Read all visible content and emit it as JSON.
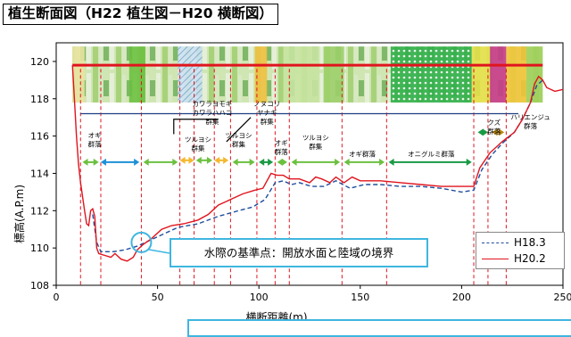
{
  "title": "植生断面図（H22 植生図－H20 横断図）",
  "callout_text": "水際の基準点：開放水面と陸域の境界",
  "colors": {
    "h183": "#1f4e9c",
    "h202": "#e0141e",
    "guide_line": "#1f3f80",
    "vertical_dash": "#e0141e",
    "arrow_green": "#6cc040",
    "arrow_darkgreen": "#1a9a44",
    "arrow_blue": "#1e90d6",
    "arrow_yellow": "#f4b82e",
    "callout_border": "#3fb6e0",
    "strip_top_line": "#e0141e"
  },
  "chart_data": {
    "type": "line",
    "title": "植生断面図（H22 植生図－H20 横断図）",
    "xlabel": "横断距離(m)",
    "ylabel": "標高(A.P.m)",
    "xlim": [
      0,
      250
    ],
    "ylim": [
      108,
      121
    ],
    "xticks": [
      0,
      50,
      100,
      150,
      200,
      250
    ],
    "yticks": [
      108,
      110,
      112,
      114,
      116,
      118,
      120
    ],
    "grid": false,
    "legend_position": "bottom-right",
    "series": [
      {
        "name": "H18.3",
        "style": "dashed",
        "color": "#1f4e9c",
        "points": [
          [
            18,
            111.8
          ],
          [
            20,
            110.3
          ],
          [
            22,
            109.8
          ],
          [
            28,
            109.8
          ],
          [
            34,
            109.9
          ],
          [
            40,
            110.1
          ],
          [
            46,
            110.4
          ],
          [
            52,
            110.7
          ],
          [
            60,
            111.1
          ],
          [
            70,
            111.3
          ],
          [
            80,
            111.7
          ],
          [
            90,
            112.0
          ],
          [
            97,
            112.2
          ],
          [
            103,
            112.6
          ],
          [
            108,
            113.5
          ],
          [
            112,
            113.6
          ],
          [
            116,
            113.4
          ],
          [
            120,
            113.5
          ],
          [
            126,
            113.3
          ],
          [
            132,
            113.3
          ],
          [
            138,
            113.6
          ],
          [
            145,
            113.2
          ],
          [
            152,
            113.4
          ],
          [
            160,
            113.4
          ],
          [
            170,
            113.3
          ],
          [
            180,
            113.3
          ],
          [
            190,
            113.2
          ],
          [
            200,
            113.0
          ],
          [
            206,
            113.1
          ],
          [
            210,
            114.2
          ],
          [
            215,
            115.0
          ],
          [
            220,
            115.6
          ],
          [
            226,
            116.2
          ],
          [
            230,
            116.9
          ],
          [
            234,
            117.8
          ],
          [
            237,
            118.7
          ],
          [
            240,
            119.0
          ]
        ]
      },
      {
        "name": "H20.2",
        "style": "solid",
        "color": "#e0141e",
        "points": [
          [
            8,
            119.8
          ],
          [
            9,
            118.0
          ],
          [
            10,
            116.0
          ],
          [
            11,
            114.5
          ],
          [
            12,
            113.5
          ],
          [
            14,
            112.0
          ],
          [
            15,
            111.3
          ],
          [
            16,
            111.2
          ],
          [
            17,
            112.0
          ],
          [
            18,
            112.1
          ],
          [
            19,
            111.7
          ],
          [
            20,
            110.0
          ],
          [
            21,
            109.7
          ],
          [
            24,
            109.6
          ],
          [
            27,
            109.5
          ],
          [
            29,
            109.7
          ],
          [
            32,
            109.4
          ],
          [
            35,
            109.3
          ],
          [
            38,
            109.5
          ],
          [
            40,
            109.9
          ],
          [
            43,
            110.2
          ],
          [
            47,
            110.5
          ],
          [
            52,
            111.0
          ],
          [
            57,
            111.2
          ],
          [
            63,
            111.3
          ],
          [
            70,
            111.5
          ],
          [
            75,
            111.8
          ],
          [
            80,
            112.3
          ],
          [
            86,
            112.6
          ],
          [
            92,
            112.9
          ],
          [
            98,
            113.1
          ],
          [
            102,
            113.2
          ],
          [
            106,
            114.0
          ],
          [
            109,
            113.9
          ],
          [
            112,
            113.9
          ],
          [
            115,
            113.7
          ],
          [
            120,
            113.7
          ],
          [
            125,
            113.5
          ],
          [
            128,
            113.8
          ],
          [
            131,
            113.7
          ],
          [
            135,
            113.5
          ],
          [
            138,
            113.8
          ],
          [
            142,
            113.5
          ],
          [
            146,
            113.8
          ],
          [
            150,
            113.6
          ],
          [
            160,
            113.6
          ],
          [
            170,
            113.5
          ],
          [
            180,
            113.4
          ],
          [
            190,
            113.3
          ],
          [
            200,
            113.3
          ],
          [
            206,
            113.3
          ],
          [
            209,
            114.3
          ],
          [
            214,
            115.1
          ],
          [
            220,
            115.7
          ],
          [
            226,
            116.2
          ],
          [
            230,
            116.9
          ],
          [
            234,
            117.8
          ],
          [
            236,
            118.8
          ],
          [
            238,
            119.2
          ],
          [
            240,
            119.0
          ],
          [
            242,
            118.6
          ],
          [
            246,
            118.4
          ],
          [
            250,
            118.5
          ]
        ]
      }
    ],
    "vertical_dashes_x": [
      12,
      22,
      42,
      61,
      68,
      78,
      86,
      99,
      108,
      115,
      141,
      163,
      206,
      213,
      222
    ],
    "vegetation_labels": [
      {
        "lines": [
          "オギ",
          "群落"
        ],
        "x": 19,
        "y": 115.9
      },
      {
        "lines": [
          "カワラヨモギ",
          "カワラハハコ",
          "群集"
        ],
        "x": 77,
        "y": 117.6
      },
      {
        "lines": [
          "ツルヨシ",
          "群集"
        ],
        "x": 70,
        "y": 115.7
      },
      {
        "lines": [
          "ツルヨシ",
          "群集"
        ],
        "x": 90,
        "y": 115.9
      },
      {
        "lines": [
          "ノヌコリ",
          "ヤナギ",
          "群集"
        ],
        "x": 104,
        "y": 117.6
      },
      {
        "lines": [
          "オギ",
          "群落"
        ],
        "x": 111,
        "y": 115.5
      },
      {
        "lines": [
          "ツルヨシ",
          "群集"
        ],
        "x": 128,
        "y": 115.8
      },
      {
        "lines": [
          "オギ群落"
        ],
        "x": 151,
        "y": 114.9
      },
      {
        "lines": [
          "オニグルミ群落"
        ],
        "x": 185,
        "y": 114.9
      },
      {
        "lines": [
          "クズ",
          "群落"
        ],
        "x": 216,
        "y": 116.6
      },
      {
        "lines": [
          "ハリエンジュ",
          "群落"
        ],
        "x": 234,
        "y": 116.9
      }
    ],
    "vegetation_arrows": [
      {
        "x1": 13,
        "x2": 21,
        "y": 114.6,
        "color": "#6cc040"
      },
      {
        "x1": 22,
        "x2": 41,
        "y": 114.6,
        "color": "#1e90d6"
      },
      {
        "x1": 43,
        "x2": 60,
        "y": 114.6,
        "color": "#6cc040"
      },
      {
        "x1": 61,
        "x2": 68,
        "y": 114.7,
        "color": "#f4b82e"
      },
      {
        "x1": 69,
        "x2": 77,
        "y": 114.7,
        "color": "#6cc040"
      },
      {
        "x1": 78,
        "x2": 85,
        "y": 114.7,
        "color": "#f4b82e"
      },
      {
        "x1": 87,
        "x2": 98,
        "y": 114.6,
        "color": "#6cc040"
      },
      {
        "x1": 100,
        "x2": 107,
        "y": 114.6,
        "color": "#1a9a44"
      },
      {
        "x1": 109,
        "x2": 114,
        "y": 114.6,
        "color": "#6cc040"
      },
      {
        "x1": 116,
        "x2": 140,
        "y": 114.6,
        "color": "#6cc040"
      },
      {
        "x1": 142,
        "x2": 162,
        "y": 114.6,
        "color": "#6cc040"
      },
      {
        "x1": 164,
        "x2": 205,
        "y": 114.6,
        "color": "#1a9a44"
      },
      {
        "x1": 208,
        "x2": 213,
        "y": 116.2,
        "color": "#1a9a44"
      },
      {
        "x1": 215,
        "x2": 221,
        "y": 116.2,
        "color": "#b8860b"
      }
    ],
    "horizontal_guide": {
      "x1": 12,
      "x2": 228,
      "y": 117.2
    },
    "strip_line": {
      "x1": 8,
      "x2": 240,
      "y": 119.8
    },
    "marker_circle": {
      "x": 42,
      "y": 110.3
    }
  }
}
